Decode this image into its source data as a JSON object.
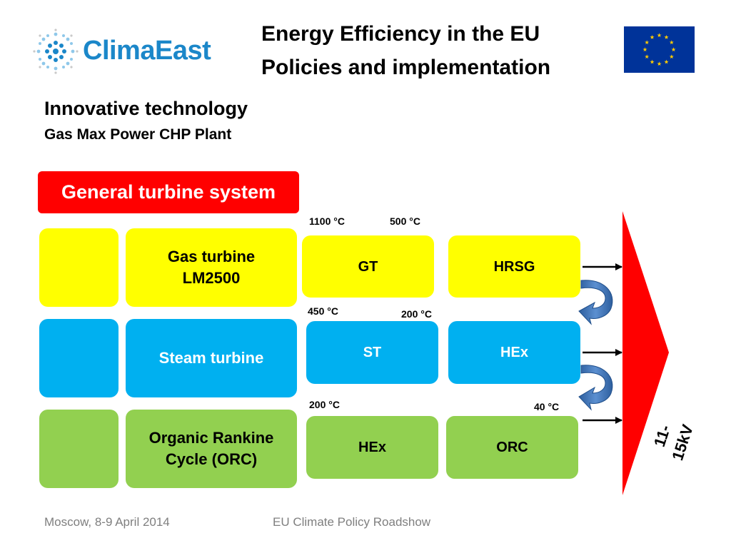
{
  "header": {
    "logo_text": "ClimaEast",
    "title_line1": "Energy Efficiency in the EU",
    "title_line2": "Policies and implementation"
  },
  "section": {
    "heading": "Innovative technology",
    "subheading": "Gas Max Power CHP Plant"
  },
  "banner": "General turbine system",
  "rows": {
    "gas": {
      "label_line1": "Gas turbine",
      "label_line2": "LM2500",
      "unit1": "GT",
      "unit2": "HRSG",
      "temp_in": "1100 °C",
      "temp_out": "500 °C"
    },
    "steam": {
      "label": "Steam turbine",
      "unit1": "ST",
      "unit2": "HEx",
      "temp_in": "450 °C",
      "temp_out": "200 °C"
    },
    "orc": {
      "label_line1": "Organic Rankine",
      "label_line2": "Cycle (ORC)",
      "unit1": "HEx",
      "unit2": "ORC",
      "temp_in": "200 °C",
      "temp_out": "40 °C"
    }
  },
  "output_voltage": "11-15kV",
  "footer": {
    "left": "Moscow, 8-9 April 2014",
    "center": "EU Climate Policy Roadshow"
  },
  "colors": {
    "yellow": "#ffff00",
    "blue": "#00b0f0",
    "green": "#92d050",
    "red": "#ff0000",
    "logo_blue": "#1b87c9",
    "eu_blue": "#003399",
    "eu_star": "#ffcc00"
  }
}
